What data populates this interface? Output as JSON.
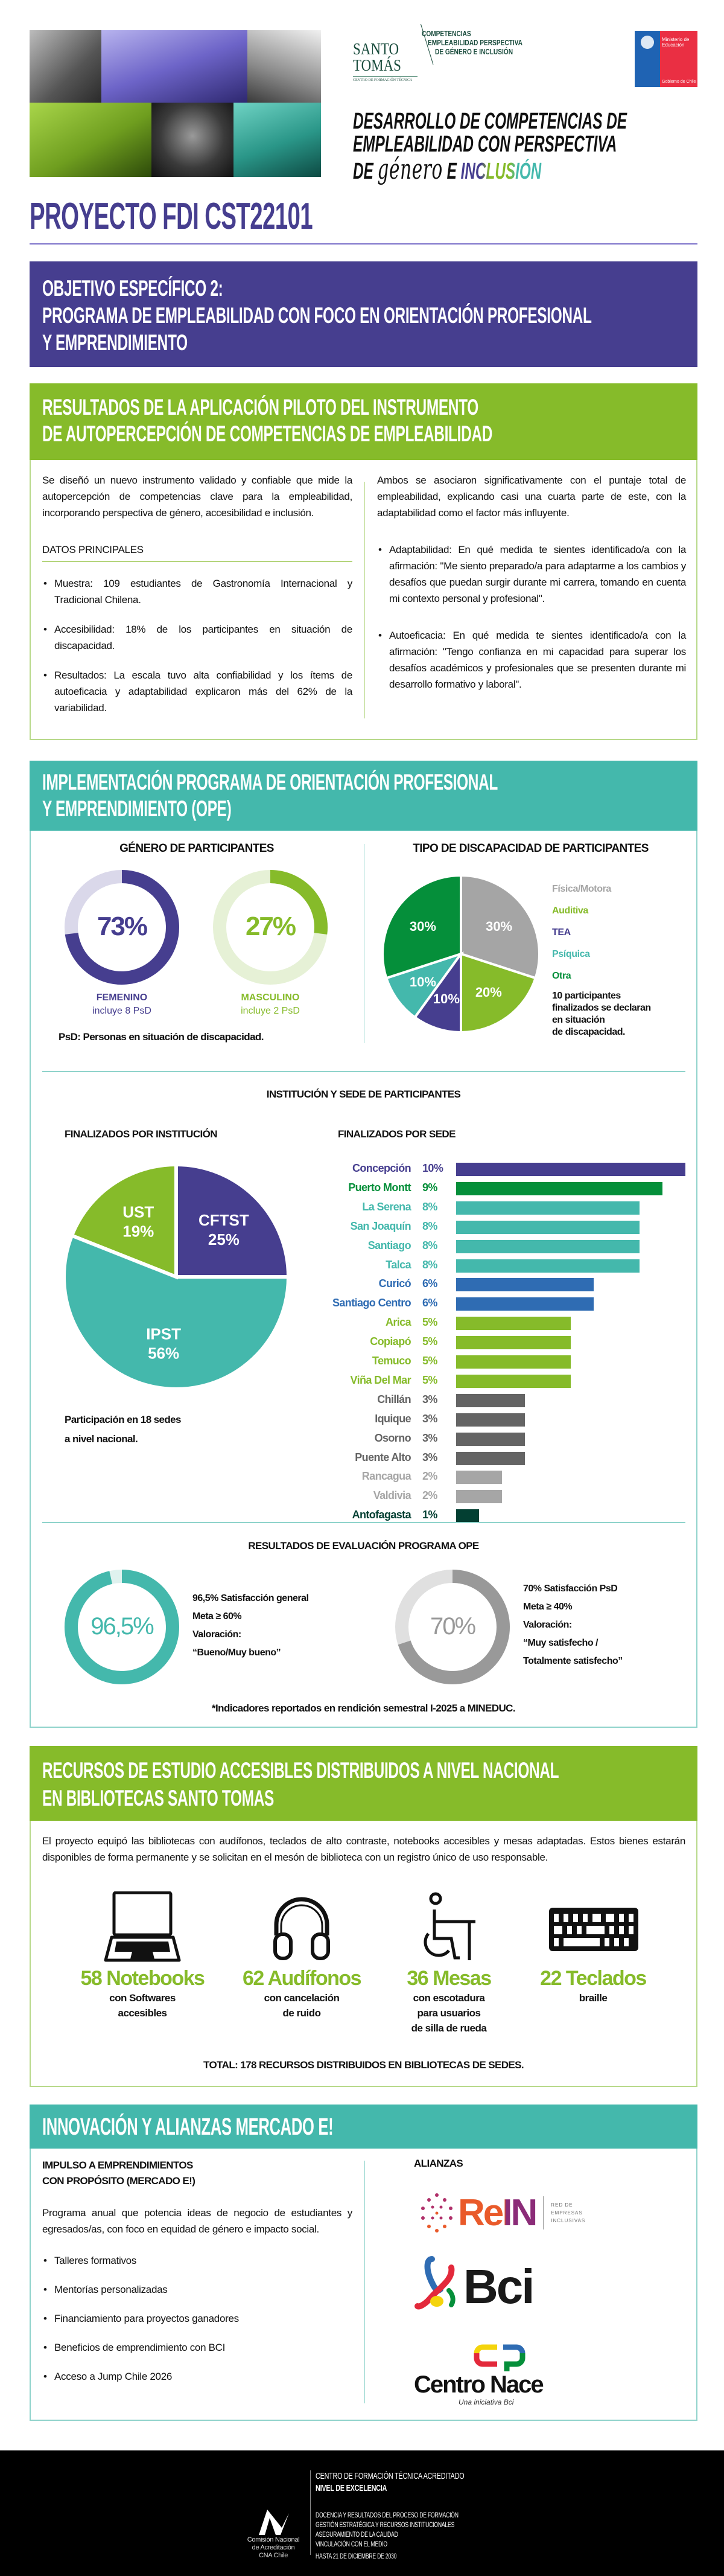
{
  "header": {
    "logo_santo_tomas": {
      "name_line1": "SANTO",
      "name_line2": "TOMÁS",
      "subtitle": "CENTRO DE FORMACIÓN TÉCNICA"
    },
    "logo_tagline": [
      "COMPETENCIAS",
      "EMPLEABILIDAD PERSPECTIVA",
      "DE GÉNERO E INCLUSIÓN"
    ],
    "ministerio": {
      "line1": "Ministerio de",
      "line2": "Educación",
      "footer": "Gobierno de Chile"
    },
    "main_title": {
      "line1": "DESARROLLO DE COMPETENCIAS DE",
      "line2": "EMPLEABILIDAD CON PERSPECTIVA",
      "line3_prefix": "DE",
      "script_word": "género",
      "line3_mid": "E",
      "highlight": "INCLUSIÓN"
    },
    "project": "PROYECTO FDI CST22101"
  },
  "objective": {
    "line1": "OBJETIVO ESPECÍFICO 2:",
    "line2": "PROGRAMA DE EMPLEABILIDAD CON FOCO EN ORIENTACIÓN PROFESIONAL",
    "line3": "Y EMPRENDIMIENTO"
  },
  "pilot": {
    "title1": "RESULTADOS DE LA APLICACIÓN PILOTO DEL INSTRUMENTO",
    "title2": "DE AUTOPERCEPCIÓN DE COMPETENCIAS DE EMPLEABILIDAD",
    "intro": "Se diseñó un nuevo instrumento validado y confiable que mide la autopercepción de competencias clave para la empleabilidad, incorporando perspectiva de género, accesibilidad e inclusión.",
    "datos_title": "DATOS PRINCIPALES",
    "datos": [
      "Muestra: 109 estudiantes de Gastronomía Internacional y Tradicional Chilena.",
      "Accesibilidad: 18% de los participantes en situación de discapacidad.",
      "Resultados: La escala tuvo alta confiabilidad y los ítems de autoeficacia y adaptabilidad explicaron más del 62% de la variabilidad."
    ],
    "right_intro": "Ambos se asociaron significativamente con el puntaje total de empleabilidad, explicando casi una cuarta parte de este, con la adaptabilidad como el factor más influyente.",
    "right_items": [
      "Adaptabilidad: En qué medida te sientes identificado/a con la afirmación: \"Me siento preparado/a para adaptarme a los cambios y desafíos que puedan surgir durante mi carrera, tomando en cuenta mi contexto personal y profesional\".",
      "Autoeficacia: En qué medida te sientes identificado/a con la afirmación: \"Tengo confianza en mi capacidad para superar los desafíos académicos y profesionales que se presenten durante mi desarrollo formativo y laboral\"."
    ]
  },
  "ope": {
    "title1": "IMPLEMENTACIÓN PROGRAMA DE ORIENTACIÓN PROFESIONAL",
    "title2": "Y EMPRENDIMIENTO (OPE)",
    "gender_title": "GÉNERO DE PARTICIPANTES",
    "femenino": {
      "label": "FEMENINO",
      "note": "incluye 8 PsD",
      "value_text": "73%"
    },
    "masculino": {
      "label": "MASCULINO",
      "note": "incluye 2 PsD",
      "value_text": "27%"
    },
    "psd_note": "PsD: Personas en situación de discapacidad.",
    "disability_title": "TIPO DE DISCAPACIDAD DE PARTICIPANTES",
    "disability_note": [
      "10 participantes",
      "finalizados se declaran",
      "en situación",
      "de discapacidad."
    ],
    "inst_sede_title": "INSTITUCIÓN Y SEDE DE PARTICIPANTES",
    "inst_title": "FINALIZADOS POR INSTITUCIÓN",
    "sede_title": "FINALIZADOS POR SEDE",
    "participation_note": [
      "Participación en 18 sedes",
      "a nivel nacional."
    ],
    "eval_title": "RESULTADOS DE EVALUACIÓN PROGRAMA OPE",
    "eval_general": {
      "value_text": "96,5%",
      "lines": [
        "96,5% Satisfacción general",
        "Meta ≥ 60%",
        "Valoración:",
        "“Bueno/Muy bueno”"
      ]
    },
    "eval_psd": {
      "value_text": "70%",
      "lines": [
        "70% Satisfacción PsD",
        "Meta ≥ 40%",
        "Valoración:",
        "“Muy satisfecho /",
        "Totalmente satisfecho”"
      ]
    },
    "footnote": "*Indicadores reportados en rendición semestral I-2025 a MINEDUC."
  },
  "chart_data": [
    {
      "type": "pie",
      "title": "GÉNERO DE PARTICIPANTES",
      "categories": [
        "FEMENINO",
        "MASCULINO"
      ],
      "values": [
        73,
        27
      ],
      "unit": "%",
      "colors": [
        "#463e8f",
        "#86bb2a"
      ]
    },
    {
      "type": "pie",
      "title": "TIPO DE DISCAPACIDAD DE PARTICIPANTES",
      "categories": [
        "Física/Motora",
        "Auditiva",
        "TEA",
        "Psíquica",
        "Otra"
      ],
      "values": [
        30,
        20,
        10,
        10,
        30
      ],
      "labels": [
        "30%",
        "20%",
        "10%",
        "10%",
        "30%"
      ],
      "colors": [
        "#a5a5a5",
        "#86bb2a",
        "#463e8f",
        "#44b8ac",
        "#058f3a"
      ],
      "legend": "right"
    },
    {
      "type": "pie",
      "title": "FINALIZADOS POR INSTITUCIÓN",
      "categories": [
        "CFTST",
        "IPST",
        "UST"
      ],
      "values": [
        25,
        56,
        19
      ],
      "labels": [
        "25%",
        "56%",
        "19%"
      ],
      "colors": [
        "#463e8f",
        "#44b8ac",
        "#86bb2a"
      ]
    },
    {
      "type": "bar",
      "orientation": "horizontal",
      "title": "FINALIZADOS POR SEDE",
      "categories": [
        "Concepción",
        "Puerto Montt",
        "La Serena",
        "San Joaquín",
        "Santiago",
        "Talca",
        "Curicó",
        "Santiago Centro",
        "Arica",
        "Copiapó",
        "Temuco",
        "Viña Del Mar",
        "Chillán",
        "Iquique",
        "Osorno",
        "Puente Alto",
        "Rancagua",
        "Valdivia",
        "Antofagasta"
      ],
      "values": [
        10,
        9,
        8,
        8,
        8,
        8,
        6,
        6,
        5,
        5,
        5,
        5,
        3,
        3,
        3,
        3,
        2,
        2,
        1
      ],
      "labels": [
        "10%",
        "9%",
        "8%",
        "8%",
        "8%",
        "8%",
        "6%",
        "6%",
        "5%",
        "5%",
        "5%",
        "5%",
        "3%",
        "3%",
        "3%",
        "3%",
        "2%",
        "2%",
        "1%"
      ],
      "colors": [
        "#463e8f",
        "#058f3a",
        "#44b8ac",
        "#44b8ac",
        "#44b8ac",
        "#44b8ac",
        "#2f6cb3",
        "#2f6cb3",
        "#86bb2a",
        "#86bb2a",
        "#86bb2a",
        "#86bb2a",
        "#646464",
        "#646464",
        "#646464",
        "#646464",
        "#a6a6a6",
        "#a6a6a6",
        "#033f32"
      ],
      "unit": "%"
    },
    {
      "type": "pie",
      "title": "RESULTADOS DE EVALUACIÓN PROGRAMA OPE",
      "categories": [
        "Satisfacción general",
        "Satisfacción PsD"
      ],
      "values": [
        96.5,
        70
      ],
      "unit": "%",
      "colors": [
        "#44b8ac",
        "#999999"
      ]
    }
  ],
  "recursos": {
    "title1": "RECURSOS DE ESTUDIO ACCESIBLES DISTRIBUIDOS A NIVEL NACIONAL",
    "title2": "EN BIBLIOTECAS SANTO TOMAS",
    "intro": "El proyecto equipó las bibliotecas con audífonos, teclados de alto contraste, notebooks accesibles y mesas adaptadas. Estos bienes estarán disponibles de forma permanente y se solicitan en el mesón de biblioteca con un registro único de uso responsable.",
    "items": [
      {
        "icon": "laptop-icon",
        "count": "58 Notebooks",
        "desc": [
          "con Softwares",
          "accesibles"
        ]
      },
      {
        "icon": "headphones-icon",
        "count": "62 Audífonos",
        "desc": [
          "con cancelación",
          "de ruido"
        ]
      },
      {
        "icon": "wheelchair-desk-icon",
        "count": "36 Mesas",
        "desc": [
          "con escotadura",
          "para usuarios",
          "de silla de rueda"
        ]
      },
      {
        "icon": "keyboard-icon",
        "count": "22 Teclados",
        "desc": [
          "braille"
        ]
      }
    ],
    "total": "TOTAL: 178 RECURSOS DISTRIBUIDOS EN BIBLIOTECAS DE SEDES."
  },
  "innovacion": {
    "title": "INNOVACIÓN Y ALIANZAS MERCADO E!",
    "left_title1": "IMPULSO A EMPRENDIMIENTOS",
    "left_title2": "CON PROPÓSITO (MERCADO E!)",
    "intro": "Programa anual que potencia ideas de negocio de estudiantes y egresados/as, con foco en equidad de género e impacto social.",
    "bullets": [
      "Talleres formativos",
      "Mentorías personalizadas",
      "Financiamiento para proyectos ganadores",
      "Beneficios de emprendimiento con BCI",
      "Acceso a Jump Chile 2026"
    ],
    "alianzas_title": "ALIANZAS",
    "rein": {
      "name": "ReIN",
      "tag": [
        "RED DE",
        "EMPRESAS",
        "INCLUSIVAS"
      ]
    },
    "bci": {
      "name": "Bci"
    },
    "centro_nace": {
      "name": "Centro Nace",
      "tag": "Una iniciativa Bci"
    }
  },
  "footer": {
    "cna_logo": [
      "Comisión Nacional",
      "de Acreditación",
      "CNA Chile"
    ],
    "line1": "CENTRO DE FORMACIÓN TÉCNICA ACREDITADO",
    "line2": "NIVEL DE EXCELENCIA",
    "areas": [
      "DOCENCIA Y RESULTADOS DEL PROCESO DE FORMACIÓN",
      "GESTIÓN ESTRATÉGICA Y RECURSOS INSTITUCIONALES",
      "ASEGURAMIENTO DE LA CALIDAD",
      "VINCULACIÓN CON EL MEDIO"
    ],
    "until": "HASTA 21 DE DICIEMBRE DE 2030"
  },
  "colors": {
    "purple": "#463e8f",
    "green": "#86bb2a",
    "teal": "#44b8ac",
    "dark_green": "#058f3a",
    "footer": "#000000"
  }
}
